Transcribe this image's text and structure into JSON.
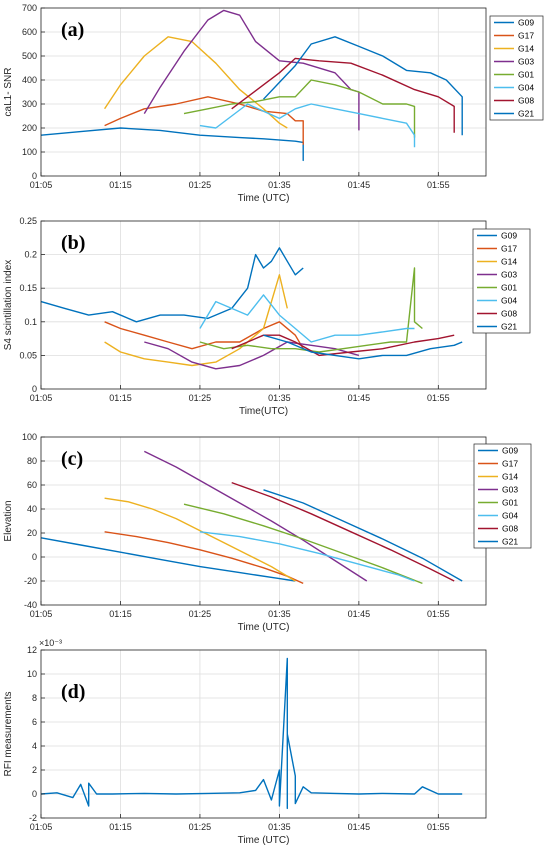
{
  "chart_data": [
    {
      "panel": "(a)",
      "type": "line",
      "xlabel": "Time (UTC)",
      "ylabel": "caL1- SNR",
      "x_unit": "UTC time (HH:MM)",
      "xlim": [
        "01:05",
        "02:01"
      ],
      "ylim": [
        0,
        700
      ],
      "xticks": [
        "01:05",
        "01:15",
        "01:25",
        "01:35",
        "01:45",
        "01:55"
      ],
      "yticks": [
        0,
        100,
        200,
        300,
        400,
        500,
        600,
        700
      ],
      "grid": true,
      "legend": "top-right",
      "series": [
        {
          "name": "G09",
          "color": "#0072BD",
          "x": [
            "01:05",
            "01:10",
            "01:15",
            "01:20",
            "01:25",
            "01:30",
            "01:33",
            "01:37",
            "01:38",
            "01:38",
            "01:38"
          ],
          "y": [
            170,
            185,
            200,
            190,
            170,
            160,
            155,
            145,
            140,
            65,
            100
          ]
        },
        {
          "name": "G17",
          "color": "#D95319",
          "x": [
            "01:13",
            "01:15",
            "01:18",
            "01:22",
            "01:26",
            "01:30",
            "01:33",
            "01:36",
            "01:37",
            "01:38",
            "01:38"
          ],
          "y": [
            210,
            240,
            280,
            300,
            330,
            300,
            270,
            260,
            230,
            230,
            130
          ]
        },
        {
          "name": "G14",
          "color": "#EDB120",
          "x": [
            "01:13",
            "01:15",
            "01:18",
            "01:21",
            "01:24",
            "01:27",
            "01:30",
            "01:33",
            "01:35",
            "01:36"
          ],
          "y": [
            280,
            380,
            500,
            580,
            560,
            470,
            360,
            280,
            220,
            200
          ]
        },
        {
          "name": "G03",
          "color": "#7E2F8E",
          "x": [
            "01:18",
            "01:20",
            "01:23",
            "01:26",
            "01:28",
            "01:30",
            "01:32",
            "01:35",
            "01:38",
            "01:42",
            "01:44",
            "01:45",
            "01:45"
          ],
          "y": [
            260,
            370,
            520,
            650,
            690,
            670,
            560,
            480,
            470,
            430,
            360,
            350,
            190
          ]
        },
        {
          "name": "G01",
          "color": "#77AC30",
          "x": [
            "01:23",
            "01:26",
            "01:29",
            "01:32",
            "01:35",
            "01:37",
            "01:39",
            "01:42",
            "01:45",
            "01:48",
            "01:51",
            "01:52",
            "01:52"
          ],
          "y": [
            260,
            280,
            300,
            310,
            330,
            330,
            400,
            380,
            350,
            300,
            300,
            290,
            160
          ]
        },
        {
          "name": "G04",
          "color": "#4DBEEE",
          "x": [
            "01:25",
            "01:27",
            "01:29",
            "01:31",
            "01:33",
            "01:35",
            "01:37",
            "01:39",
            "01:42",
            "01:45",
            "01:48",
            "01:51",
            "01:52",
            "01:52"
          ],
          "y": [
            210,
            200,
            250,
            300,
            270,
            240,
            280,
            300,
            280,
            260,
            240,
            220,
            170,
            120
          ]
        },
        {
          "name": "G08",
          "color": "#A2142F",
          "x": [
            "01:29",
            "01:31",
            "01:33",
            "01:35",
            "01:37",
            "01:40",
            "01:44",
            "01:48",
            "01:52",
            "01:55",
            "01:57",
            "01:57"
          ],
          "y": [
            280,
            330,
            380,
            430,
            490,
            480,
            470,
            420,
            360,
            330,
            290,
            180
          ]
        },
        {
          "name": "G21",
          "color": "#0072BD",
          "x": [
            "01:33",
            "01:35",
            "01:37",
            "01:39",
            "01:42",
            "01:45",
            "01:48",
            "01:51",
            "01:54",
            "01:56",
            "01:58",
            "01:58"
          ],
          "y": [
            320,
            390,
            460,
            550,
            580,
            540,
            500,
            440,
            430,
            400,
            330,
            170
          ]
        }
      ]
    },
    {
      "panel": "(b)",
      "type": "line",
      "xlabel": "Time(UTC)",
      "ylabel": "S4 scintillation index",
      "x_unit": "UTC time (HH:MM)",
      "xlim": [
        "01:05",
        "02:01"
      ],
      "ylim": [
        0,
        0.25
      ],
      "xticks": [
        "01:05",
        "01:15",
        "01:25",
        "01:35",
        "01:45",
        "01:55"
      ],
      "yticks": [
        0,
        0.05,
        0.1,
        0.15,
        0.2,
        0.25
      ],
      "grid": true,
      "legend": "top-right",
      "series": [
        {
          "name": "G09",
          "color": "#0072BD",
          "x": [
            "01:05",
            "01:08",
            "01:11",
            "01:14",
            "01:17",
            "01:20",
            "01:23",
            "01:26",
            "01:29",
            "01:31",
            "01:32",
            "01:33",
            "01:34",
            "01:35",
            "01:36",
            "01:37",
            "01:38"
          ],
          "y": [
            0.13,
            0.12,
            0.11,
            0.115,
            0.1,
            0.11,
            0.11,
            0.105,
            0.12,
            0.15,
            0.2,
            0.18,
            0.19,
            0.21,
            0.19,
            0.17,
            0.18
          ]
        },
        {
          "name": "G17",
          "color": "#D95319",
          "x": [
            "01:13",
            "01:15",
            "01:18",
            "01:21",
            "01:24",
            "01:27",
            "01:30",
            "01:33",
            "01:35",
            "01:37",
            "01:38"
          ],
          "y": [
            0.1,
            0.09,
            0.08,
            0.07,
            0.06,
            0.07,
            0.07,
            0.09,
            0.1,
            0.08,
            0.06
          ]
        },
        {
          "name": "G14",
          "color": "#EDB120",
          "x": [
            "01:13",
            "01:15",
            "01:18",
            "01:21",
            "01:24",
            "01:27",
            "01:30",
            "01:33",
            "01:35",
            "01:36"
          ],
          "y": [
            0.07,
            0.055,
            0.045,
            0.04,
            0.035,
            0.04,
            0.06,
            0.09,
            0.17,
            0.12
          ]
        },
        {
          "name": "G03",
          "color": "#7E2F8E",
          "x": [
            "01:18",
            "01:21",
            "01:24",
            "01:27",
            "01:30",
            "01:33",
            "01:36",
            "01:39",
            "01:42",
            "01:45"
          ],
          "y": [
            0.07,
            0.06,
            0.04,
            0.03,
            0.035,
            0.05,
            0.07,
            0.065,
            0.06,
            0.05
          ]
        },
        {
          "name": "G01",
          "color": "#77AC30",
          "x": [
            "01:25",
            "01:28",
            "01:31",
            "01:34",
            "01:37",
            "01:40",
            "01:43",
            "01:46",
            "01:49",
            "01:51",
            "01:52",
            "01:52",
            "01:53"
          ],
          "y": [
            0.07,
            0.06,
            0.065,
            0.06,
            0.06,
            0.055,
            0.06,
            0.065,
            0.07,
            0.07,
            0.18,
            0.1,
            0.09
          ]
        },
        {
          "name": "G04",
          "color": "#4DBEEE",
          "x": [
            "01:25",
            "01:27",
            "01:29",
            "01:31",
            "01:33",
            "01:35",
            "01:37",
            "01:39",
            "01:42",
            "01:45",
            "01:48",
            "01:51",
            "01:52"
          ],
          "y": [
            0.09,
            0.13,
            0.12,
            0.11,
            0.14,
            0.11,
            0.09,
            0.07,
            0.08,
            0.08,
            0.085,
            0.09,
            0.09
          ]
        },
        {
          "name": "G08",
          "color": "#A2142F",
          "x": [
            "01:29",
            "01:31",
            "01:33",
            "01:35",
            "01:37",
            "01:40",
            "01:44",
            "01:48",
            "01:52",
            "01:55",
            "01:57"
          ],
          "y": [
            0.06,
            0.07,
            0.08,
            0.08,
            0.07,
            0.05,
            0.055,
            0.06,
            0.07,
            0.075,
            0.08
          ]
        },
        {
          "name": "G21",
          "color": "#0072BD",
          "x": [
            "01:33",
            "01:36",
            "01:39",
            "01:42",
            "01:45",
            "01:48",
            "01:51",
            "01:54",
            "01:57",
            "01:58"
          ],
          "y": [
            0.08,
            0.07,
            0.055,
            0.05,
            0.045,
            0.05,
            0.05,
            0.06,
            0.065,
            0.07
          ]
        }
      ]
    },
    {
      "panel": "(c)",
      "type": "line",
      "xlabel": "Time (UTC)",
      "ylabel": "Elevation",
      "x_unit": "UTC time (HH:MM)",
      "xlim": [
        "01:05",
        "02:01"
      ],
      "ylim": [
        -40,
        100
      ],
      "xticks": [
        "01:05",
        "01:15",
        "01:25",
        "01:35",
        "01:45",
        "01:55"
      ],
      "yticks": [
        -40,
        -20,
        0,
        20,
        40,
        60,
        80,
        100
      ],
      "grid": true,
      "legend": "top-right",
      "series": [
        {
          "name": "G09",
          "color": "#0072BD",
          "x": [
            "01:05",
            "01:10",
            "01:15",
            "01:20",
            "01:25",
            "01:30",
            "01:35",
            "01:37"
          ],
          "y": [
            16,
            10,
            4,
            -2,
            -8,
            -13,
            -18,
            -20
          ]
        },
        {
          "name": "G17",
          "color": "#D95319",
          "x": [
            "01:13",
            "01:17",
            "01:21",
            "01:25",
            "01:29",
            "01:33",
            "01:36",
            "01:38"
          ],
          "y": [
            21,
            17,
            12,
            6,
            -1,
            -9,
            -16,
            -22
          ]
        },
        {
          "name": "G14",
          "color": "#EDB120",
          "x": [
            "01:13",
            "01:16",
            "01:19",
            "01:22",
            "01:25",
            "01:28",
            "01:31",
            "01:34",
            "01:37"
          ],
          "y": [
            49,
            46,
            40,
            32,
            22,
            12,
            2,
            -8,
            -20
          ]
        },
        {
          "name": "G03",
          "color": "#7E2F8E",
          "x": [
            "01:18",
            "01:22",
            "01:26",
            "01:30",
            "01:34",
            "01:38",
            "01:42",
            "01:46"
          ],
          "y": [
            88,
            75,
            60,
            45,
            30,
            14,
            -3,
            -20
          ]
        },
        {
          "name": "G01",
          "color": "#77AC30",
          "x": [
            "01:23",
            "01:28",
            "01:33",
            "01:38",
            "01:43",
            "01:48",
            "01:53"
          ],
          "y": [
            44,
            36,
            26,
            15,
            3,
            -9,
            -22
          ]
        },
        {
          "name": "G04",
          "color": "#4DBEEE",
          "x": [
            "01:25",
            "01:30",
            "01:35",
            "01:40",
            "01:45",
            "01:50",
            "01:52"
          ],
          "y": [
            21,
            17,
            11,
            3,
            -6,
            -15,
            -20
          ]
        },
        {
          "name": "G08",
          "color": "#A2142F",
          "x": [
            "01:29",
            "01:34",
            "01:39",
            "01:44",
            "01:49",
            "01:54",
            "01:57"
          ],
          "y": [
            62,
            50,
            36,
            21,
            6,
            -10,
            -20
          ]
        },
        {
          "name": "G21",
          "color": "#0072BD",
          "x": [
            "01:33",
            "01:38",
            "01:43",
            "01:48",
            "01:53",
            "01:58"
          ],
          "y": [
            56,
            45,
            30,
            15,
            -1,
            -20
          ]
        }
      ]
    },
    {
      "panel": "(d)",
      "type": "line",
      "xlabel": "Time (UTC)",
      "ylabel": "RFI measurements",
      "x_unit": "UTC time (HH:MM)",
      "y_multiplier": "×10⁻³",
      "y_unit": "×1e-3",
      "xlim": [
        "01:05",
        "02:01"
      ],
      "ylim": [
        -2,
        12
      ],
      "xticks": [
        "01:05",
        "01:15",
        "01:25",
        "01:35",
        "01:45",
        "01:55"
      ],
      "yticks": [
        -2,
        0,
        2,
        4,
        6,
        8,
        10,
        12
      ],
      "grid": true,
      "legend": "none",
      "series": [
        {
          "color": "#0072BD",
          "x": [
            "01:05",
            "01:07",
            "01:09",
            "01:10",
            "01:11",
            "01:11",
            "01:12",
            "01:14",
            "01:18",
            "01:22",
            "01:26",
            "01:30",
            "01:32",
            "01:33",
            "01:34",
            "01:35",
            "01:35",
            "01:36",
            "01:36",
            "01:36",
            "01:37",
            "01:37",
            "01:38",
            "01:39",
            "01:42",
            "01:45",
            "01:48",
            "01:52",
            "01:53",
            "01:55",
            "01:58"
          ],
          "y": [
            0,
            0.1,
            -0.3,
            0.8,
            -1,
            0.9,
            0,
            0,
            0.05,
            0,
            0.05,
            0.1,
            0.3,
            1.2,
            -0.5,
            2,
            -1,
            11.3,
            -1.2,
            5,
            1.5,
            -0.8,
            0.6,
            0.1,
            0.05,
            0,
            0.05,
            0,
            0.6,
            0,
            0
          ]
        }
      ]
    }
  ]
}
